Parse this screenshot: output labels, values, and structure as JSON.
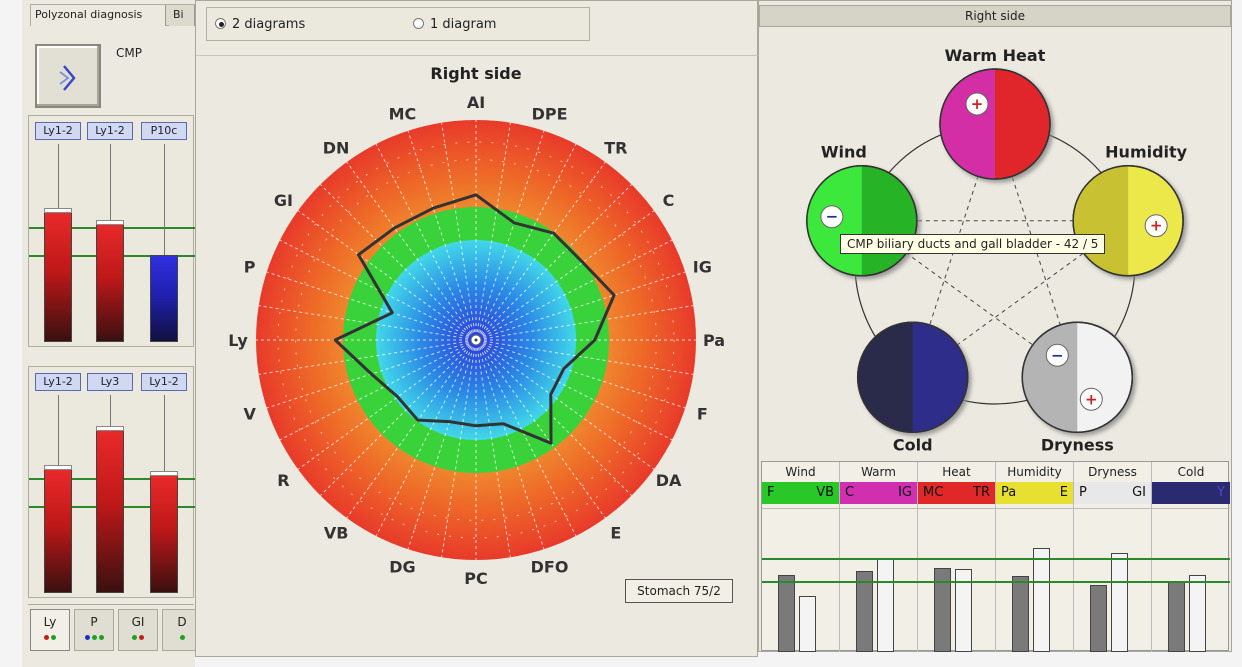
{
  "left": {
    "tabs": [
      "Polyzonal diagnosis",
      "Bi"
    ],
    "cmp_label": "CMP",
    "group_a": {
      "tags": [
        "Ly1-2",
        "Ly1-2",
        "P10c"
      ],
      "bars": [
        {
          "color": "red",
          "level": 0.66
        },
        {
          "color": "red",
          "level": 0.6
        },
        {
          "color": "blue",
          "level": 0.44
        }
      ]
    },
    "group_b": {
      "tags": [
        "Ly1-2",
        "Ly3",
        "Ly1-2"
      ],
      "bars": [
        {
          "color": "red",
          "level": 0.63
        },
        {
          "color": "red",
          "level": 0.83
        },
        {
          "color": "red",
          "level": 0.6
        }
      ]
    },
    "bottom_tabs": [
      {
        "label": "Ly",
        "dots": [
          "#c02020",
          "#20a020"
        ]
      },
      {
        "label": "P",
        "dots": [
          "#2030c0",
          "#20a020",
          "#20a020"
        ]
      },
      {
        "label": "GI",
        "dots": [
          "#20a020",
          "#c02020"
        ]
      },
      {
        "label": "D",
        "dots": [
          "#20a020"
        ]
      }
    ]
  },
  "center": {
    "radio_2": "2 diagrams",
    "radio_1": "1 diagram",
    "title": "Right side",
    "labels": [
      "AI",
      "DPE",
      "TR",
      "C",
      "IG",
      "Pa",
      "F",
      "DA",
      "E",
      "DFO",
      "PC",
      "DG",
      "VB",
      "R",
      "V",
      "Ly",
      "P",
      "GI",
      "DN",
      "MC"
    ],
    "values": [
      0.66,
      0.56,
      0.6,
      0.6,
      0.66,
      0.54,
      0.42,
      0.42,
      0.58,
      0.4,
      0.39,
      0.39,
      0.45,
      0.44,
      0.5,
      0.64,
      0.4,
      0.66,
      0.63,
      0.63
    ],
    "badge": "Stomach 75/2"
  },
  "right": {
    "header": "Right side",
    "tooltip": "CMP biliary ducts and gall bladder - 42 / 5",
    "elements": [
      {
        "name": "Warm Heat",
        "sign": "+",
        "colors": [
          "#d32ea6",
          "#e0282a"
        ]
      },
      {
        "name": "Humidity",
        "sign": "+",
        "colors": [
          "#c8c232",
          "#ece84a"
        ]
      },
      {
        "name": "Dryness",
        "sign_minus": "−",
        "sign": "+",
        "colors": [
          "#b4b4b4",
          "#f2f2f2"
        ]
      },
      {
        "name": "Cold",
        "sign": "",
        "colors": [
          "#2a2a4a",
          "#2e2e8a"
        ]
      },
      {
        "name": "Wind",
        "sign": "−",
        "colors": [
          "#3ce83c",
          "#28b428"
        ]
      }
    ],
    "table": [
      {
        "title": "Wind",
        "codes": [
          "F",
          "VB"
        ],
        "code_color": "#28c828",
        "bars": [
          0.55,
          0.4
        ]
      },
      {
        "title": "Warm",
        "codes": [
          "C",
          "IG"
        ],
        "code_color": "#d030b0",
        "bars": [
          0.58,
          0.67
        ]
      },
      {
        "title": "Heat",
        "codes": [
          "MC",
          "TR"
        ],
        "code_color": "#e02828",
        "bars": [
          0.6,
          0.59
        ]
      },
      {
        "title": "Humidity",
        "codes": [
          "Pa",
          "E"
        ],
        "code_color": "#e8e030",
        "bars": [
          0.54,
          0.74
        ]
      },
      {
        "title": "Dryness",
        "codes": [
          "P",
          "GI"
        ],
        "code_color": "#e8e8e8",
        "bars": [
          0.48,
          0.71
        ]
      },
      {
        "title": "Cold",
        "codes": [
          "",
          "Y"
        ],
        "code_color": "#2a2a70",
        "bars": [
          0.51,
          0.55
        ]
      }
    ]
  }
}
